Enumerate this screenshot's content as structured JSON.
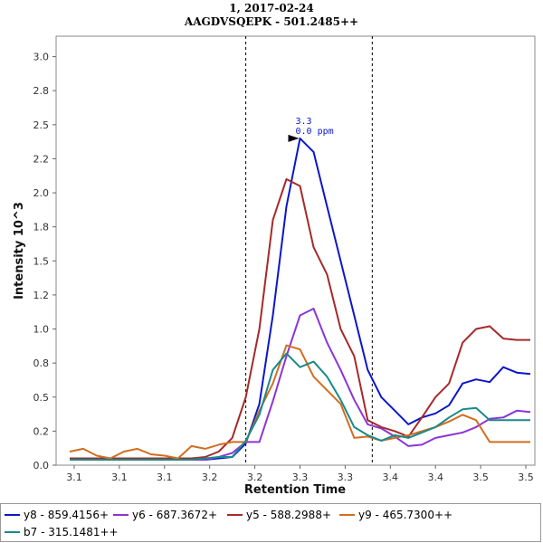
{
  "chart_data": {
    "type": "line",
    "title": "1, 2017-02-24",
    "subtitle": "AAGDVSQEPK - 501.2485++",
    "xlabel": "Retention Time",
    "ylabel": "Intensity 10^3",
    "xlim": [
      3.05,
      3.58
    ],
    "ylim": [
      0,
      3.15
    ],
    "x_tick_labels": [
      "3.1",
      "3.1",
      "3.1",
      "3.2",
      "3.2",
      "3.3",
      "3.3",
      "3.4",
      "3.4",
      "3.5",
      "3.5"
    ],
    "x_tick_values": [
      3.07,
      3.12,
      3.17,
      3.22,
      3.27,
      3.32,
      3.37,
      3.42,
      3.47,
      3.52,
      3.57
    ],
    "y_ticks": [
      "0.0",
      "0.2",
      "0.5",
      "0.8",
      "1.0",
      "1.2",
      "1.5",
      "1.8",
      "2.0",
      "2.2",
      "2.5",
      "2.8",
      "3.0"
    ],
    "y_tick_values": [
      0.0,
      0.25,
      0.5,
      0.75,
      1.0,
      1.25,
      1.5,
      1.75,
      2.0,
      2.25,
      2.5,
      2.75,
      3.0
    ],
    "integration_boundaries": [
      3.26,
      3.4
    ],
    "x": [
      3.065,
      3.08,
      3.095,
      3.11,
      3.125,
      3.14,
      3.155,
      3.17,
      3.185,
      3.2,
      3.215,
      3.23,
      3.245,
      3.26,
      3.275,
      3.29,
      3.305,
      3.32,
      3.335,
      3.35,
      3.365,
      3.38,
      3.395,
      3.41,
      3.425,
      3.44,
      3.455,
      3.47,
      3.485,
      3.5,
      3.515,
      3.53,
      3.545,
      3.56,
      3.575
    ],
    "series": [
      {
        "name": "y8 - 859.4156+",
        "color": "#0c17c9",
        "values": [
          0.04,
          0.04,
          0.04,
          0.04,
          0.04,
          0.04,
          0.04,
          0.04,
          0.04,
          0.04,
          0.04,
          0.05,
          0.06,
          0.16,
          0.45,
          1.1,
          1.9,
          2.4,
          2.3,
          1.9,
          1.5,
          1.1,
          0.7,
          0.5,
          0.4,
          0.3,
          0.35,
          0.38,
          0.44,
          0.6,
          0.63,
          0.61,
          0.72,
          0.68,
          0.67
        ]
      },
      {
        "name": "y6 - 687.3672+",
        "color": "#8b35d8",
        "values": [
          0.04,
          0.04,
          0.04,
          0.04,
          0.04,
          0.04,
          0.04,
          0.04,
          0.04,
          0.04,
          0.04,
          0.06,
          0.09,
          0.17,
          0.17,
          0.47,
          0.8,
          1.1,
          1.15,
          0.9,
          0.7,
          0.48,
          0.3,
          0.27,
          0.21,
          0.14,
          0.15,
          0.2,
          0.22,
          0.24,
          0.28,
          0.34,
          0.35,
          0.4,
          0.39
        ]
      },
      {
        "name": "y5 - 588.2988+",
        "color": "#a52a2a",
        "values": [
          0.05,
          0.05,
          0.05,
          0.05,
          0.05,
          0.05,
          0.05,
          0.05,
          0.05,
          0.05,
          0.06,
          0.1,
          0.2,
          0.5,
          1.0,
          1.8,
          2.1,
          2.05,
          1.6,
          1.4,
          1.0,
          0.8,
          0.33,
          0.28,
          0.25,
          0.21,
          0.35,
          0.5,
          0.6,
          0.9,
          1.0,
          1.02,
          0.93,
          0.92,
          0.92
        ]
      },
      {
        "name": "y9 - 465.7300++",
        "color": "#d16e20",
        "values": [
          0.1,
          0.12,
          0.07,
          0.05,
          0.1,
          0.12,
          0.08,
          0.07,
          0.05,
          0.14,
          0.12,
          0.15,
          0.17,
          0.17,
          0.4,
          0.6,
          0.88,
          0.85,
          0.65,
          0.55,
          0.45,
          0.2,
          0.21,
          0.18,
          0.2,
          0.22,
          0.25,
          0.28,
          0.32,
          0.37,
          0.33,
          0.17,
          0.17,
          0.17,
          0.17
        ]
      },
      {
        "name": "b7 - 315.1481++",
        "color": "#1a8a8a",
        "values": [
          0.04,
          0.04,
          0.04,
          0.04,
          0.04,
          0.04,
          0.04,
          0.04,
          0.04,
          0.04,
          0.05,
          0.06,
          0.06,
          0.18,
          0.37,
          0.7,
          0.82,
          0.72,
          0.76,
          0.65,
          0.48,
          0.28,
          0.22,
          0.18,
          0.22,
          0.2,
          0.24,
          0.28,
          0.35,
          0.41,
          0.42,
          0.33,
          0.33,
          0.33,
          0.33
        ]
      }
    ],
    "annotations": [
      {
        "series": "y8 - 859.4156+",
        "x": 3.32,
        "y": 2.4,
        "lines": [
          "3.3",
          "0.0 ppm"
        ],
        "color": "#0c17c9",
        "marker": "arrow"
      }
    ],
    "legend_position": "bottom"
  }
}
